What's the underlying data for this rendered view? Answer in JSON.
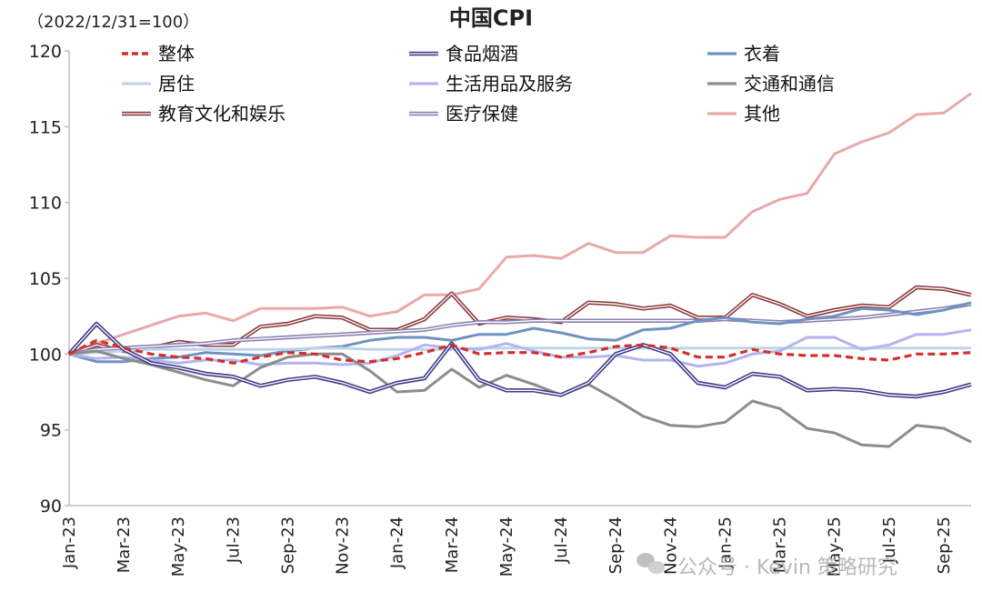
{
  "chart_data": {
    "type": "line",
    "title": "中国CPI",
    "base_note": "（2022/12/31=100）",
    "ylim": [
      90,
      120
    ],
    "yticks": [
      90,
      95,
      100,
      105,
      110,
      115,
      120
    ],
    "x": [
      "2023-01",
      "2023-02",
      "2023-03",
      "2023-04",
      "2023-05",
      "2023-06",
      "2023-07",
      "2023-08",
      "2023-09",
      "2023-10",
      "2023-11",
      "2023-12",
      "2024-01",
      "2024-02",
      "2024-03",
      "2024-04",
      "2024-05",
      "2024-06",
      "2024-07",
      "2024-08",
      "2024-09",
      "2024-10",
      "2024-11",
      "2024-12",
      "2025-01",
      "2025-02",
      "2025-03",
      "2025-04",
      "2025-05",
      "2025-06",
      "2025-07",
      "2025-08",
      "2025-09",
      "2025-10"
    ],
    "xtick_labels": [
      "Jan-23",
      "Mar-23",
      "May-23",
      "Jul-23",
      "Sep-23",
      "Nov-23",
      "Jan-24",
      "Mar-24",
      "May-24",
      "Jul-24",
      "Sep-24",
      "Nov-24",
      "Jan-25",
      "Mar-25",
      "May-25",
      "Jul-25",
      "Sep-25"
    ],
    "series": [
      {
        "name": "整体",
        "color": "#d2302c",
        "style": "dashed",
        "values": [
          100,
          100.9,
          100.4,
          100.0,
          99.8,
          99.7,
          99.4,
          99.8,
          100.1,
          100.0,
          99.6,
          99.5,
          99.7,
          100.1,
          100.6,
          100.0,
          100.1,
          100.1,
          99.8,
          100.1,
          100.5,
          100.6,
          100.4,
          99.8,
          99.8,
          100.3,
          100.0,
          99.9,
          99.9,
          99.7,
          99.6,
          100.0,
          100.0,
          100.1
        ]
      },
      {
        "name": "食品烟酒",
        "color": "#3f3c8a",
        "style": "double",
        "values": [
          100,
          102.0,
          100.3,
          99.4,
          99.1,
          98.7,
          98.5,
          97.9,
          98.3,
          98.5,
          98.1,
          97.5,
          98.1,
          98.4,
          100.7,
          98.3,
          97.6,
          97.6,
          97.3,
          98.1,
          100.0,
          100.6,
          100.0,
          98.1,
          97.8,
          98.7,
          98.5,
          97.6,
          97.7,
          97.6,
          97.3,
          97.2,
          97.5,
          98.0
        ]
      },
      {
        "name": "衣着",
        "color": "#6f93c1",
        "style": "solid",
        "values": [
          100,
          99.5,
          99.5,
          99.7,
          99.8,
          100.1,
          100.0,
          99.9,
          100.2,
          100.4,
          100.5,
          100.9,
          101.1,
          101.1,
          100.9,
          101.3,
          101.3,
          101.7,
          101.4,
          101.0,
          100.9,
          101.6,
          101.7,
          102.2,
          102.4,
          102.1,
          102.0,
          102.3,
          102.5,
          103.0,
          102.9,
          102.6,
          102.9,
          103.4
        ]
      },
      {
        "name": "居住",
        "color": "#bdd5ea",
        "style": "solid",
        "values": [
          100,
          100.1,
          100.2,
          100.3,
          100.3,
          100.3,
          100.3,
          100.3,
          100.3,
          100.4,
          100.4,
          100.3,
          100.3,
          100.3,
          100.3,
          100.4,
          100.4,
          100.4,
          100.4,
          100.4,
          100.4,
          100.4,
          100.4,
          100.4,
          100.4,
          100.4,
          100.4,
          100.4,
          100.4,
          100.4,
          100.4,
          100.4,
          100.4,
          100.4
        ]
      },
      {
        "name": "生活用品及服务",
        "color": "#b3b5ee",
        "style": "solid",
        "values": [
          100,
          99.7,
          99.8,
          99.6,
          99.4,
          99.6,
          99.6,
          99.3,
          99.4,
          99.4,
          99.3,
          99.4,
          99.9,
          100.6,
          100.4,
          100.3,
          100.7,
          100.2,
          99.8,
          99.8,
          99.9,
          99.6,
          99.6,
          99.2,
          99.4,
          100.0,
          100.2,
          101.1,
          101.1,
          100.3,
          100.6,
          101.3,
          101.3,
          101.6
        ]
      },
      {
        "name": "交通和通信",
        "color": "#8c8c8c",
        "style": "solid",
        "values": [
          100,
          100.2,
          99.7,
          99.3,
          98.8,
          98.3,
          97.9,
          99.1,
          99.8,
          100.0,
          100.0,
          98.9,
          97.5,
          97.6,
          99.0,
          97.8,
          98.6,
          98.0,
          97.3,
          98.0,
          97.0,
          95.9,
          95.3,
          95.2,
          95.5,
          96.9,
          96.4,
          95.1,
          94.8,
          94.0,
          93.9,
          95.3,
          95.1,
          94.2
        ]
      },
      {
        "name": "教育文化和娱乐",
        "color": "#8e3c3e",
        "style": "double",
        "values": [
          100,
          100.6,
          100.2,
          100.4,
          100.8,
          100.6,
          100.6,
          101.8,
          102.0,
          102.5,
          102.4,
          101.6,
          101.6,
          102.3,
          104.0,
          102.0,
          102.4,
          102.3,
          102.1,
          103.4,
          103.3,
          103.0,
          103.2,
          102.4,
          102.4,
          103.9,
          103.3,
          102.5,
          102.9,
          103.2,
          103.1,
          104.4,
          104.3,
          103.9
        ]
      },
      {
        "name": "医疗保健",
        "color": "#8b80b2",
        "style": "double",
        "values": [
          100,
          100.3,
          100.4,
          100.5,
          100.6,
          100.7,
          100.9,
          101.0,
          101.1,
          101.2,
          101.3,
          101.4,
          101.5,
          101.6,
          101.9,
          102.1,
          102.1,
          102.2,
          102.2,
          102.2,
          102.2,
          102.2,
          102.2,
          102.2,
          102.3,
          102.2,
          102.1,
          102.2,
          102.3,
          102.4,
          102.6,
          102.8,
          103.0,
          103.3
        ]
      },
      {
        "name": "其他",
        "color": "#e8aaa8",
        "style": "solid",
        "values": [
          100,
          100.7,
          101.3,
          101.9,
          102.5,
          102.7,
          102.2,
          103.0,
          103.0,
          103.0,
          103.1,
          102.5,
          102.8,
          103.9,
          103.9,
          104.3,
          106.4,
          106.5,
          106.3,
          107.3,
          106.7,
          106.7,
          107.8,
          107.7,
          107.7,
          109.4,
          110.2,
          110.6,
          113.2,
          114.0,
          114.6,
          115.8,
          115.9,
          117.2
        ]
      }
    ]
  },
  "watermark": {
    "text": "公众号 · Kevin 策略研究"
  }
}
